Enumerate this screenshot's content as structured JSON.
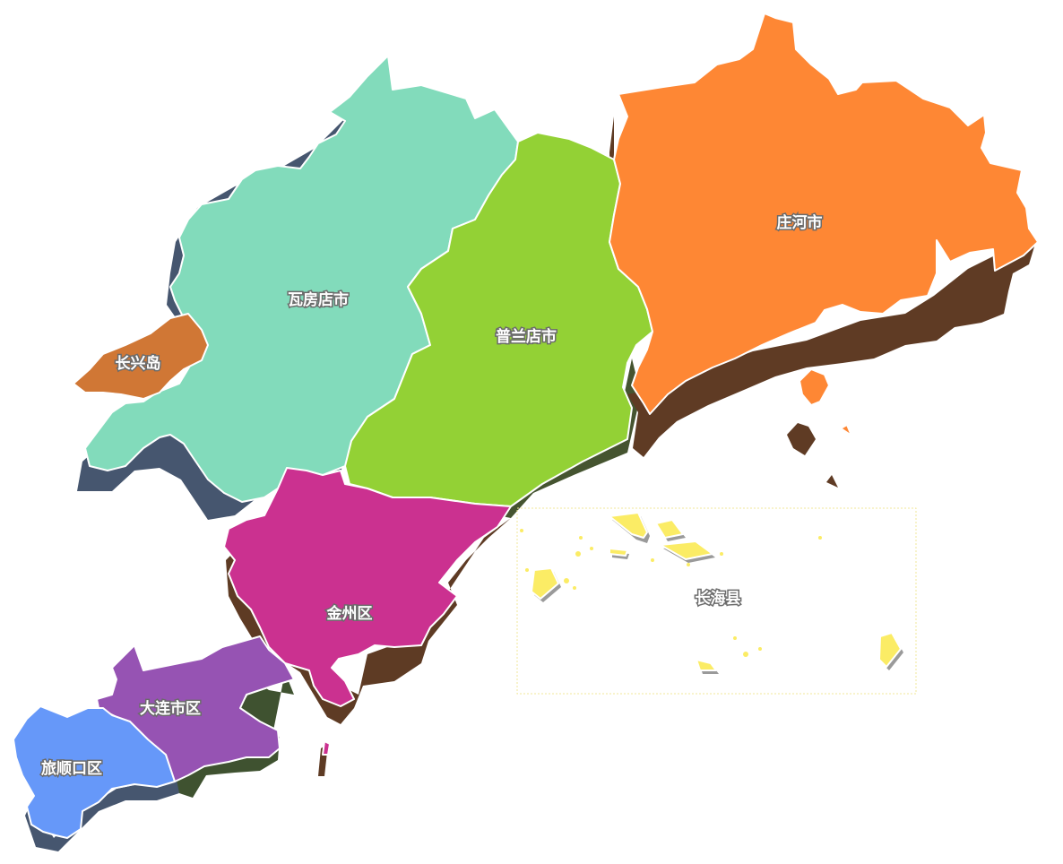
{
  "map_title": "",
  "regions": [
    {
      "id": "wafangdian",
      "label": "瓦房店市",
      "color": "#82dbbb",
      "shadow": "#46566f"
    },
    {
      "id": "changxingdao",
      "label": "长兴岛",
      "color": "#d07735",
      "shadow": "#5c3a20"
    },
    {
      "id": "pulandian",
      "label": "普兰店市",
      "color": "#93d135",
      "shadow": "#455430"
    },
    {
      "id": "zhuanghe",
      "label": "庄河市",
      "color": "#fe8734",
      "shadow": "#5f3b24"
    },
    {
      "id": "jinzhou",
      "label": "金州区",
      "color": "#cb3190",
      "shadow": "#5e3b24"
    },
    {
      "id": "dalian",
      "label": "大连市区",
      "color": "#9653b3",
      "shadow": "#3f5230"
    },
    {
      "id": "lushun",
      "label": "旅顺口区",
      "color": "#6698f9",
      "shadow": "#46566f"
    },
    {
      "id": "changhai",
      "label": "长海县",
      "color": "#fbec65",
      "shadow": "#9a9a9a"
    }
  ]
}
